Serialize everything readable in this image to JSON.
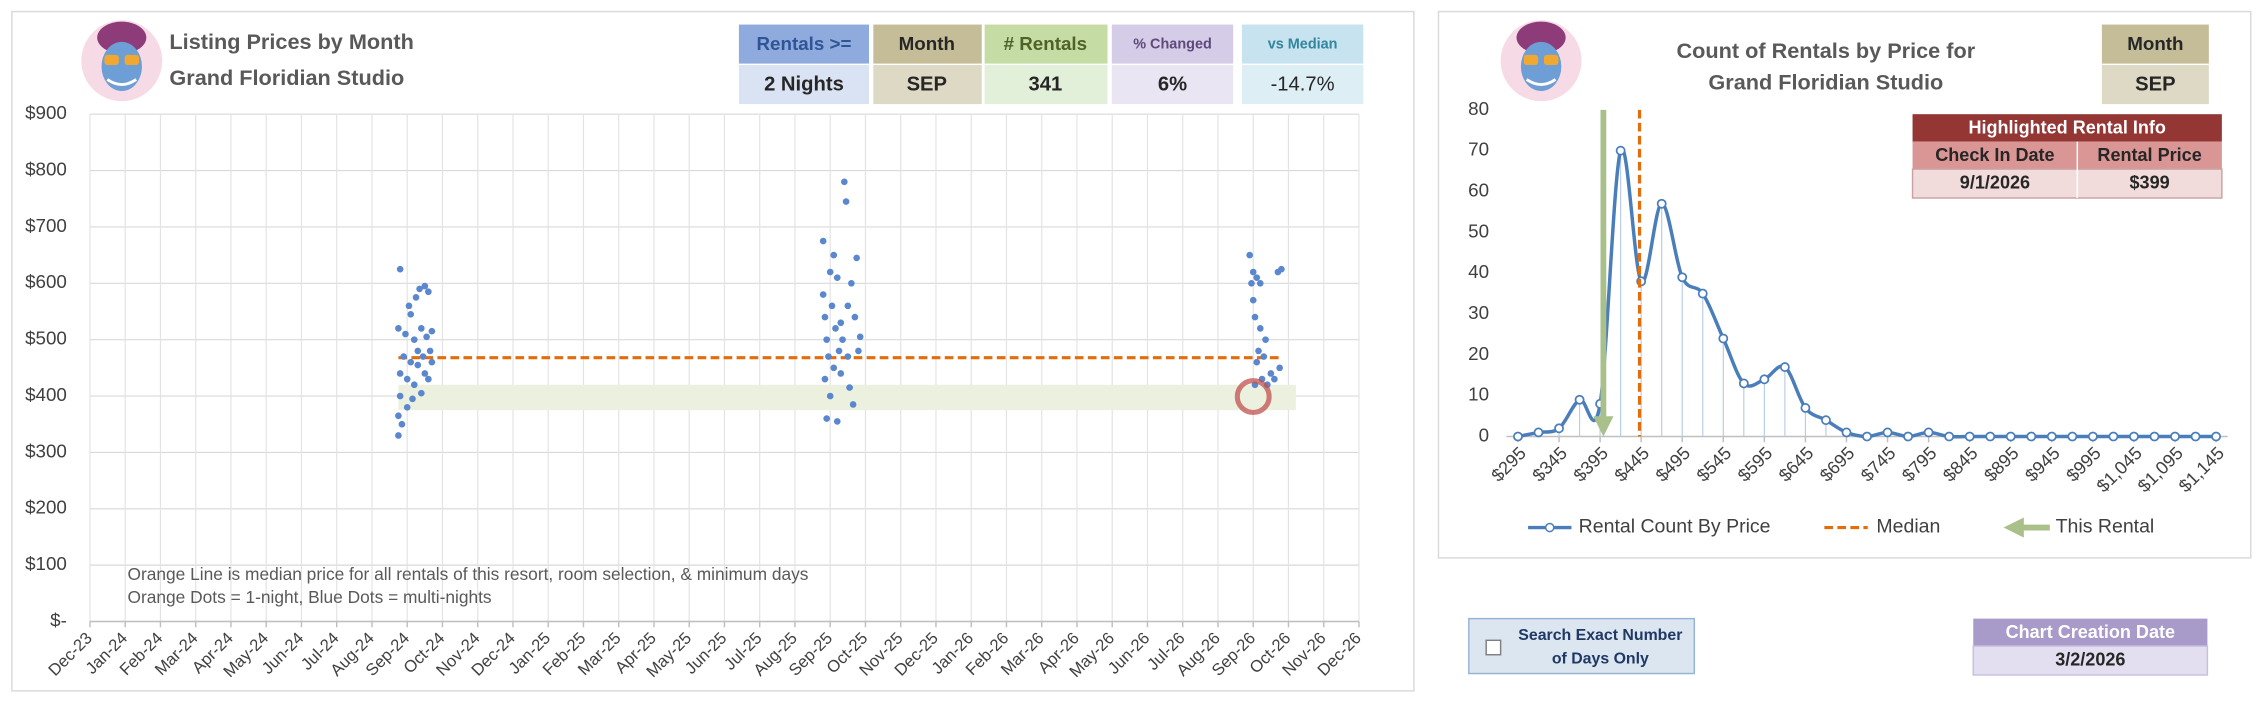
{
  "header_cards": [
    {
      "label": "Rentals >=",
      "value": "2 Nights"
    },
    {
      "label": "Month",
      "value": "SEP"
    },
    {
      "label": "# Rentals",
      "value": "341"
    },
    {
      "label": "% Changed",
      "value": "6%"
    },
    {
      "label": "vs Median",
      "value": "-14.7%"
    }
  ],
  "price_panel": {
    "label": "Month",
    "value": "SEP"
  },
  "highlight": {
    "title": "Highlighted Rental Info",
    "columns": [
      "Check In Date",
      "Rental Price"
    ],
    "values": [
      "9/1/2026",
      "$399"
    ]
  },
  "search_option": [
    "Search Exact Number",
    "of Days Only"
  ],
  "creation": {
    "label": "Chart Creation Date",
    "value": "3/2/2026"
  },
  "chart_data": [
    {
      "type": "scatter",
      "title": "Listing Prices by Month",
      "subtitle": "Grand Floridian Studio",
      "color": "#5b87cf",
      "x": [
        8.75,
        8.75,
        8.75,
        8.8,
        8.8,
        8.8,
        8.85,
        8.9,
        8.95,
        9.0,
        9.0,
        9.05,
        9.1,
        9.1,
        9.15,
        9.2,
        9.2,
        9.25,
        9.3,
        9.3,
        9.35,
        9.4,
        9.4,
        9.45,
        9.5,
        9.5,
        9.55,
        9.6,
        9.6,
        9.65,
        9.7,
        9.7,
        20.8,
        20.8,
        20.85,
        20.85,
        20.9,
        20.9,
        20.95,
        21.0,
        21.0,
        21.05,
        21.1,
        21.1,
        21.15,
        21.2,
        21.2,
        21.25,
        21.3,
        21.3,
        21.35,
        21.4,
        21.45,
        21.5,
        21.5,
        21.55,
        21.6,
        21.65,
        21.7,
        21.75,
        21.8,
        21.85,
        32.9,
        32.95,
        33.0,
        33.0,
        33.05,
        33.05,
        33.1,
        33.1,
        33.15,
        33.2,
        33.2,
        33.25,
        33.3,
        33.35,
        33.4,
        33.5,
        33.6,
        33.7,
        33.75,
        33.8
      ],
      "values": [
        330,
        365,
        520,
        625,
        440,
        400,
        350,
        470,
        510,
        380,
        430,
        560,
        460,
        545,
        395,
        500,
        420,
        575,
        480,
        455,
        590,
        405,
        520,
        470,
        595,
        440,
        505,
        585,
        430,
        480,
        515,
        460,
        675,
        580,
        430,
        540,
        360,
        500,
        470,
        620,
        400,
        560,
        650,
        450,
        520,
        355,
        610,
        480,
        440,
        530,
        500,
        780,
        745,
        470,
        560,
        415,
        600,
        385,
        540,
        645,
        480,
        505,
        650,
        600,
        620,
        570,
        540,
        420,
        610,
        460,
        480,
        600,
        520,
        430,
        470,
        500,
        420,
        440,
        430,
        620,
        450,
        625
      ],
      "median": {
        "y": 468,
        "color": "#e46c0a"
      },
      "band": {
        "range": [
          375,
          420
        ],
        "color": "#ebf1de"
      },
      "highlight": {
        "x": 33.0,
        "y": 399,
        "color": "#c0504d"
      },
      "xlim": [
        0,
        36
      ],
      "xticks": [
        {
          "value": 0,
          "label": "Dec-23"
        },
        {
          "value": 1,
          "label": "Jan-24"
        },
        {
          "value": 2,
          "label": "Feb-24"
        },
        {
          "value": 3,
          "label": "Mar-24"
        },
        {
          "value": 4,
          "label": "Apr-24"
        },
        {
          "value": 5,
          "label": "May-24"
        },
        {
          "value": 6,
          "label": "Jun-24"
        },
        {
          "value": 7,
          "label": "Jul-24"
        },
        {
          "value": 8,
          "label": "Aug-24"
        },
        {
          "value": 9,
          "label": "Sep-24"
        },
        {
          "value": 10,
          "label": "Oct-24"
        },
        {
          "value": 11,
          "label": "Nov-24"
        },
        {
          "value": 12,
          "label": "Dec-24"
        },
        {
          "value": 13,
          "label": "Jan-25"
        },
        {
          "value": 14,
          "label": "Feb-25"
        },
        {
          "value": 15,
          "label": "Mar-25"
        },
        {
          "value": 16,
          "label": "Apr-25"
        },
        {
          "value": 17,
          "label": "May-25"
        },
        {
          "value": 18,
          "label": "Jun-25"
        },
        {
          "value": 19,
          "label": "Jul-25"
        },
        {
          "value": 20,
          "label": "Aug-25"
        },
        {
          "value": 21,
          "label": "Sep-25"
        },
        {
          "value": 22,
          "label": "Oct-25"
        },
        {
          "value": 23,
          "label": "Nov-25"
        },
        {
          "value": 24,
          "label": "Dec-25"
        },
        {
          "value": 25,
          "label": "Jan-26"
        },
        {
          "value": 26,
          "label": "Feb-26"
        },
        {
          "value": 27,
          "label": "Mar-26"
        },
        {
          "value": 28,
          "label": "Apr-26"
        },
        {
          "value": 29,
          "label": "May-26"
        },
        {
          "value": 30,
          "label": "Jun-26"
        },
        {
          "value": 31,
          "label": "Jul-26"
        },
        {
          "value": 32,
          "label": "Aug-26"
        },
        {
          "value": 33,
          "label": "Sep-26"
        },
        {
          "value": 34,
          "label": "Oct-26"
        },
        {
          "value": 35,
          "label": "Nov-26"
        },
        {
          "value": 36,
          "label": "Dec-26"
        }
      ],
      "ylim": [
        0,
        900
      ],
      "yticks": [
        {
          "value": 0,
          "label": "$-"
        },
        {
          "value": 100,
          "label": "$100"
        },
        {
          "value": 200,
          "label": "$200"
        },
        {
          "value": 300,
          "label": "$300"
        },
        {
          "value": 400,
          "label": "$400"
        },
        {
          "value": 500,
          "label": "$500"
        },
        {
          "value": 600,
          "label": "$600"
        },
        {
          "value": 700,
          "label": "$700"
        },
        {
          "value": 800,
          "label": "$800"
        },
        {
          "value": 900,
          "label": "$900"
        }
      ],
      "grid": true,
      "annotations": [
        "Orange Line is median price for all rentals of this resort, room selection, & minimum days",
        "Orange Dots = 1-night, Blue Dots = multi-nights"
      ]
    },
    {
      "type": "line",
      "title": "Count of Rentals by Price for",
      "subtitle": "Grand Floridian Studio",
      "x": [
        295,
        320,
        345,
        370,
        395,
        420,
        445,
        470,
        495,
        520,
        545,
        570,
        595,
        620,
        645,
        670,
        695,
        720,
        745,
        770,
        795,
        820,
        845,
        870,
        895,
        920,
        945,
        970,
        995,
        1020,
        1045,
        1070,
        1095,
        1120,
        1145
      ],
      "series": [
        {
          "name": "Rental Count By Price",
          "color": "#4a7ebb",
          "values": [
            0,
            1,
            2,
            9,
            8,
            70,
            38,
            57,
            39,
            35,
            24,
            13,
            14,
            17,
            7,
            4,
            1,
            0,
            1,
            0,
            1,
            0,
            0,
            0,
            0,
            0,
            0,
            0,
            0,
            0,
            0,
            0,
            0,
            0,
            0
          ]
        }
      ],
      "median": {
        "name": "Median",
        "x": 443,
        "color": "#e46c0a"
      },
      "this_rental": {
        "name": "This Rental",
        "x": 399,
        "color": "#a9c08a"
      },
      "xlim": [
        295,
        1145
      ],
      "xticks": [
        {
          "value": 295,
          "label": "$295"
        },
        {
          "value": 345,
          "label": "$345"
        },
        {
          "value": 395,
          "label": "$395"
        },
        {
          "value": 445,
          "label": "$445"
        },
        {
          "value": 495,
          "label": "$495"
        },
        {
          "value": 545,
          "label": "$545"
        },
        {
          "value": 595,
          "label": "$595"
        },
        {
          "value": 645,
          "label": "$645"
        },
        {
          "value": 695,
          "label": "$695"
        },
        {
          "value": 745,
          "label": "$745"
        },
        {
          "value": 795,
          "label": "$795"
        },
        {
          "value": 845,
          "label": "$845"
        },
        {
          "value": 895,
          "label": "$895"
        },
        {
          "value": 945,
          "label": "$945"
        },
        {
          "value": 995,
          "label": "$995"
        },
        {
          "value": 1045,
          "label": "$1,045"
        },
        {
          "value": 1095,
          "label": "$1,095"
        },
        {
          "value": 1145,
          "label": "$1,145"
        }
      ],
      "ylim": [
        0,
        80
      ],
      "yticks": [
        0,
        10,
        20,
        30,
        40,
        50,
        60,
        70,
        80
      ],
      "legend": "bottom"
    }
  ]
}
